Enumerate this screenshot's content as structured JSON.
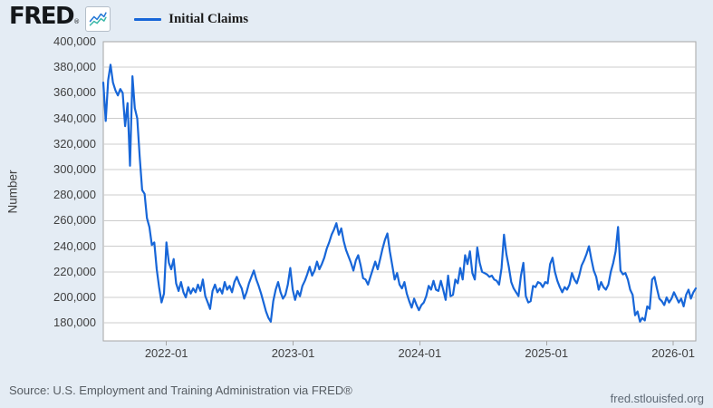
{
  "header": {
    "logo_text": "FRED",
    "registered_mark": "®",
    "legend_label": "Initial Claims"
  },
  "footer": {
    "source_text": "Source: U.S. Employment and Training Administration via FRED®",
    "site_link": "fred.stlouisfed.org"
  },
  "colors": {
    "page_bg": "#e4ecf4",
    "plot_bg": "#ffffff",
    "grid": "#cccccc",
    "border": "#a6a6a6",
    "line": "#1766d8",
    "spark_blue": "#2478d6",
    "spark_teal": "#3cb8a9",
    "text": "#404040"
  },
  "chart_data": {
    "type": "line",
    "title": "Initial Claims",
    "ylabel": "Number",
    "xlabel": "",
    "legend_position": "top-left",
    "grid": true,
    "frequency": "weekly",
    "ylim": [
      166000,
      400000
    ],
    "y_ticks": [
      400000,
      380000,
      360000,
      340000,
      320000,
      300000,
      280000,
      260000,
      240000,
      220000,
      200000,
      180000
    ],
    "y_tick_labels": [
      "400,000",
      "380,000",
      "360,000",
      "340,000",
      "320,000",
      "300,000",
      "280,000",
      "260,000",
      "240,000",
      "220,000",
      "200,000",
      "180,000"
    ],
    "x_ticks": [
      "2022-01",
      "2023-01",
      "2024-01",
      "2025-01",
      "2026-01"
    ],
    "x_span_weeks_before_first_tick": 26,
    "weeks_per_year": 52.18,
    "values": [
      368000,
      338000,
      370000,
      382000,
      368000,
      362000,
      358000,
      363000,
      360000,
      334000,
      352000,
      303000,
      373000,
      348000,
      340000,
      310000,
      284000,
      281000,
      262000,
      255000,
      241000,
      243000,
      222000,
      208000,
      196000,
      203000,
      243000,
      227000,
      222000,
      230000,
      211000,
      205000,
      212000,
      204000,
      200000,
      208000,
      203000,
      207000,
      204000,
      210000,
      205000,
      214000,
      201000,
      196000,
      191000,
      205000,
      210000,
      204000,
      207000,
      203000,
      212000,
      206000,
      209000,
      204000,
      212000,
      216000,
      211000,
      207000,
      199000,
      204000,
      211000,
      216000,
      221000,
      214000,
      209000,
      203000,
      196000,
      189000,
      184000,
      181000,
      197000,
      206000,
      212000,
      204000,
      199000,
      202000,
      210000,
      223000,
      206000,
      198000,
      205000,
      201000,
      209000,
      213000,
      218000,
      224000,
      217000,
      221000,
      228000,
      222000,
      226000,
      231000,
      238000,
      243000,
      249000,
      253000,
      258000,
      249000,
      254000,
      244000,
      237000,
      232000,
      227000,
      221000,
      229000,
      233000,
      225000,
      215000,
      214000,
      210000,
      216000,
      222000,
      228000,
      222000,
      230000,
      238000,
      245000,
      250000,
      236000,
      225000,
      214000,
      219000,
      210000,
      207000,
      212000,
      203000,
      197000,
      192000,
      199000,
      194000,
      190000,
      194000,
      196000,
      201000,
      209000,
      206000,
      213000,
      206000,
      205000,
      213000,
      206000,
      198000,
      217000,
      201000,
      202000,
      214000,
      211000,
      223000,
      214000,
      233000,
      226000,
      236000,
      219000,
      214000,
      239000,
      227000,
      220000,
      219000,
      218000,
      216000,
      217000,
      214000,
      213000,
      210000,
      223000,
      249000,
      234000,
      224000,
      212000,
      207000,
      204000,
      201000,
      217000,
      227000,
      201000,
      196000,
      197000,
      209000,
      208000,
      212000,
      211000,
      208000,
      212000,
      211000,
      226000,
      231000,
      220000,
      213000,
      208000,
      204000,
      208000,
      206000,
      210000,
      219000,
      214000,
      211000,
      217000,
      225000,
      229000,
      234000,
      240000,
      230000,
      221000,
      216000,
      206000,
      212000,
      208000,
      206000,
      210000,
      220000,
      227000,
      236000,
      255000,
      221000,
      218000,
      219000,
      214000,
      206000,
      202000,
      186000,
      189000,
      181000,
      184000,
      182000,
      193000,
      191000,
      214000,
      216000,
      207000,
      199000,
      197000,
      194000,
      200000,
      196000,
      199000,
      204000,
      200000,
      196000,
      199000,
      193000,
      202000,
      206000,
      199000,
      204000,
      207000
    ]
  }
}
